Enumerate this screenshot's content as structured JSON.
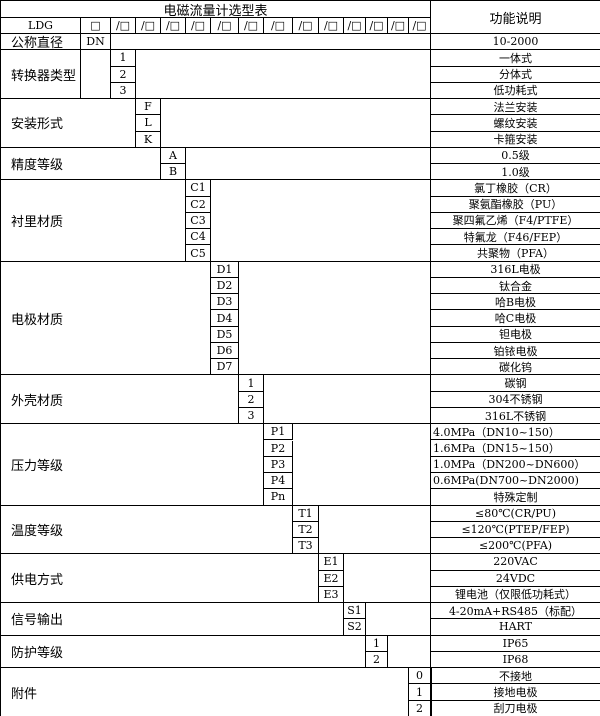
{
  "title": "电磁流量计选型表",
  "function_header": "功能说明",
  "model_row": {
    "prefix": "LDG",
    "first_box": "□",
    "boxes": [
      "/□",
      "/□",
      "/□",
      "/□",
      "/□",
      "/□",
      "/□",
      "/□",
      "/□",
      "/□",
      "/□",
      "/□",
      "/□"
    ]
  },
  "nominal": {
    "label": "公称直径",
    "code": "DN",
    "function": "10-2000"
  },
  "groups": [
    {
      "label": "转换器类型",
      "col": 0,
      "options": [
        {
          "code": "1",
          "desc": "一体式"
        },
        {
          "code": "2",
          "desc": "分体式"
        },
        {
          "code": "3",
          "desc": "低功耗式"
        }
      ]
    },
    {
      "label": "安装形式",
      "col": 1,
      "options": [
        {
          "code": "F",
          "desc": "法兰安装"
        },
        {
          "code": "L",
          "desc": "螺纹安装"
        },
        {
          "code": "K",
          "desc": "卡箍安装"
        }
      ]
    },
    {
      "label": "精度等级",
      "col": 2,
      "options": [
        {
          "code": "A",
          "desc": "0.5级"
        },
        {
          "code": "B",
          "desc": "1.0级"
        }
      ]
    },
    {
      "label": "衬里材质",
      "col": 3,
      "options": [
        {
          "code": "C1",
          "desc": "氯丁橡胶（CR）"
        },
        {
          "code": "C2",
          "desc": "聚氨酯橡胶（PU）"
        },
        {
          "code": "C3",
          "desc": "聚四氟乙烯（F4/PTFE）"
        },
        {
          "code": "C4",
          "desc": "特氟龙（F46/FEP）"
        },
        {
          "code": "C5",
          "desc": "共聚物（PFA）"
        }
      ]
    },
    {
      "label": "电极材质",
      "col": 4,
      "options": [
        {
          "code": "D1",
          "desc": "316L电极"
        },
        {
          "code": "D2",
          "desc": "钛合金"
        },
        {
          "code": "D3",
          "desc": "哈B电极"
        },
        {
          "code": "D4",
          "desc": "哈C电极"
        },
        {
          "code": "D5",
          "desc": "钽电极"
        },
        {
          "code": "D6",
          "desc": "铂铱电极"
        },
        {
          "code": "D7",
          "desc": "碳化钨"
        }
      ]
    },
    {
      "label": "外壳材质",
      "col": 5,
      "options": [
        {
          "code": "1",
          "desc": "碳钢"
        },
        {
          "code": "2",
          "desc": "304不锈钢"
        },
        {
          "code": "3",
          "desc": "316L不锈钢"
        }
      ]
    },
    {
      "label": "压力等级",
      "col": 6,
      "options": [
        {
          "code": "P1",
          "desc": "4.0MPa（DN10~150）",
          "left": true
        },
        {
          "code": "P2",
          "desc": "1.6MPa（DN15~150）",
          "left": true
        },
        {
          "code": "P3",
          "desc": "1.0MPa（DN200~DN600）",
          "left": true
        },
        {
          "code": "P4",
          "desc": "0.6MPa(DN700~DN2000)",
          "left": true
        },
        {
          "code": "Pn",
          "desc": "特殊定制"
        }
      ]
    },
    {
      "label": "温度等级",
      "col": 7,
      "options": [
        {
          "code": "T1",
          "desc": "≤80℃(CR/PU)"
        },
        {
          "code": "T2",
          "desc": "≤120℃(PTEP/FEP)"
        },
        {
          "code": "T3",
          "desc": "≤200℃(PFA)"
        }
      ]
    },
    {
      "label": "供电方式",
      "col": 8,
      "options": [
        {
          "code": "E1",
          "desc": "220VAC"
        },
        {
          "code": "E2",
          "desc": "24VDC"
        },
        {
          "code": "E3",
          "desc": "锂电池（仅限低功耗式）"
        }
      ]
    },
    {
      "label": "信号输出",
      "col": 9,
      "options": [
        {
          "code": "S1",
          "desc": "4-20mA+RS485（标配）"
        },
        {
          "code": "S2",
          "desc": "HART"
        }
      ]
    },
    {
      "label": "防护等级",
      "col": 10,
      "options": [
        {
          "code": "1",
          "desc": "IP65"
        },
        {
          "code": "2",
          "desc": "IP68"
        }
      ]
    },
    {
      "label": "附件",
      "col": 12,
      "options": [
        {
          "code": "0",
          "desc": "不接地"
        },
        {
          "code": "1",
          "desc": "接地电极"
        },
        {
          "code": "2",
          "desc": "刮刀电极"
        }
      ]
    }
  ]
}
